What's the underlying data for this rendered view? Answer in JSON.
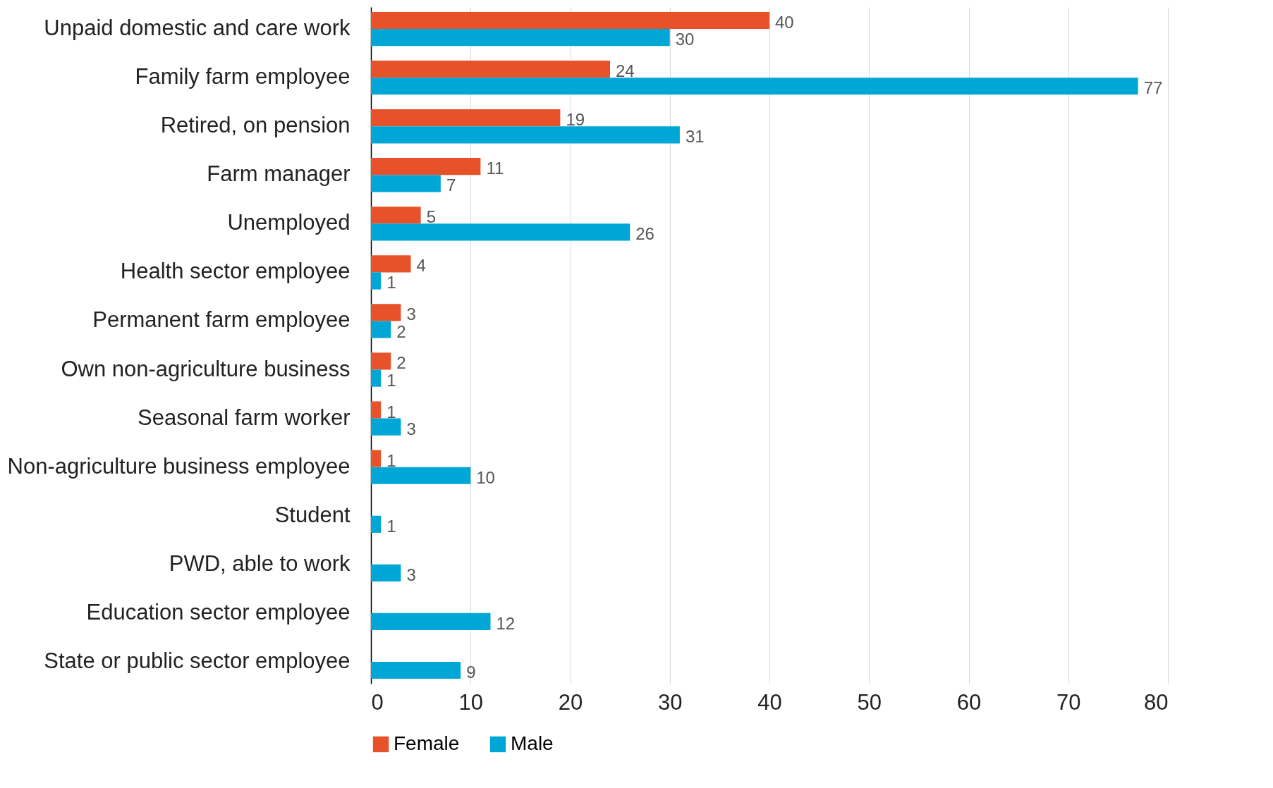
{
  "chart_data": {
    "type": "bar",
    "orientation": "horizontal",
    "categories": [
      "Unpaid domestic and care work",
      "Family farm employee",
      "Retired, on pension",
      "Farm manager",
      "Unemployed",
      "Health sector employee",
      "Permanent farm employee",
      "Own non-agriculture business",
      "Seasonal farm  worker",
      "Non-agriculture business employee",
      "Student",
      "PWD, able to work",
      "Education sector employee",
      "State or public sector employee"
    ],
    "series": [
      {
        "name": "Female",
        "color": "#e8522a",
        "values": [
          40,
          24,
          19,
          11,
          5,
          4,
          3,
          2,
          1,
          1,
          null,
          null,
          null,
          null
        ]
      },
      {
        "name": "Male",
        "color": "#00a6d6",
        "values": [
          30,
          77,
          31,
          7,
          26,
          1,
          2,
          1,
          3,
          10,
          1,
          3,
          12,
          9
        ]
      }
    ],
    "xlim": [
      0,
      80
    ],
    "xticks": [
      0,
      10,
      20,
      30,
      40,
      50,
      60,
      70,
      80
    ],
    "grid": "x",
    "legend": "bottom",
    "data_labels": true
  }
}
